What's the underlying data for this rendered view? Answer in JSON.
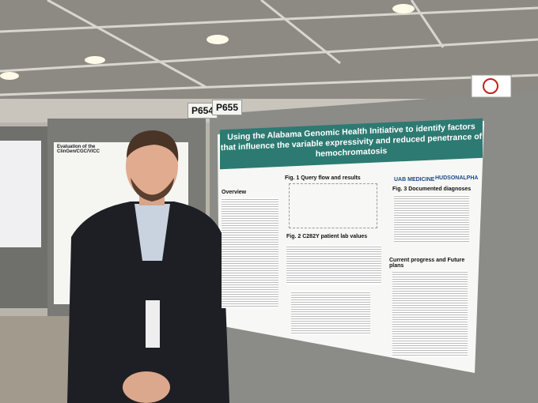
{
  "signs": {
    "left": "P654",
    "right": "P655"
  },
  "poster": {
    "title": "Using the Alabama Genomic Health Initiative to identify factors that influence the variable expressivity and reduced penetrance of hemochromatosis",
    "sections": [
      "Overview",
      "Fig. 1 Query flow and results",
      "Fig. 2 C282Y patient lab values",
      "Fig. 3 Documented diagnoses",
      "Current progress and Future plans"
    ],
    "logos": [
      "UAB MEDICINE",
      "HUDSONALPHA"
    ]
  },
  "left_poster": {
    "title": "Evaluation of the ClinGen/CGC/VICC"
  }
}
